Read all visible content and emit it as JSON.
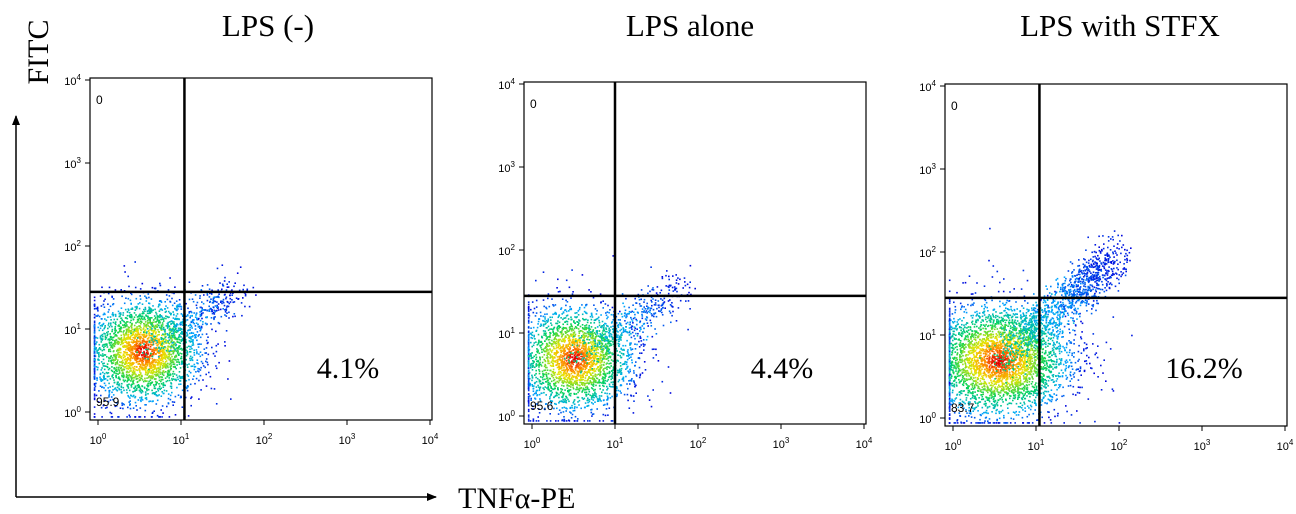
{
  "y_axis_label": "FITC",
  "x_axis_label": "TNFα-PE",
  "chart_data": [
    {
      "type": "scatter",
      "title": "LPS (-)",
      "x_scale": "log",
      "y_scale": "log",
      "xlim": [
        1,
        10000
      ],
      "ylim": [
        1,
        10000
      ],
      "x_ticks": [
        {
          "base": "10",
          "exp": "0"
        },
        {
          "base": "10",
          "exp": "1"
        },
        {
          "base": "10",
          "exp": "2"
        },
        {
          "base": "10",
          "exp": "3"
        },
        {
          "base": "10",
          "exp": "4"
        }
      ],
      "y_ticks": [
        {
          "base": "10",
          "exp": "0"
        },
        {
          "base": "10",
          "exp": "1"
        },
        {
          "base": "10",
          "exp": "2"
        },
        {
          "base": "10",
          "exp": "3"
        },
        {
          "base": "10",
          "exp": "4"
        }
      ],
      "quadrant_gate": {
        "x": 11,
        "y": 28
      },
      "upper_left_percent": "0",
      "lower_left_percent": "95.9",
      "lower_right_percent": "4.1%",
      "population": {
        "center_x": 3.5,
        "center_y": 5.5,
        "spread_x": 0.35,
        "spread_y": 0.33,
        "n_main": 2600,
        "tail_extent_x": 45,
        "tail_extent_y": 30,
        "n_tail": 380
      }
    },
    {
      "type": "scatter",
      "title": "LPS alone",
      "x_scale": "log",
      "y_scale": "log",
      "xlim": [
        1,
        10000
      ],
      "ylim": [
        1,
        10000
      ],
      "x_ticks": [
        {
          "base": "10",
          "exp": "0"
        },
        {
          "base": "10",
          "exp": "1"
        },
        {
          "base": "10",
          "exp": "2"
        },
        {
          "base": "10",
          "exp": "3"
        },
        {
          "base": "10",
          "exp": "4"
        }
      ],
      "y_ticks": [
        {
          "base": "10",
          "exp": "0"
        },
        {
          "base": "10",
          "exp": "1"
        },
        {
          "base": "10",
          "exp": "2"
        },
        {
          "base": "10",
          "exp": "3"
        },
        {
          "base": "10",
          "exp": "4"
        }
      ],
      "quadrant_gate": {
        "x": 10,
        "y": 28
      },
      "upper_left_percent": "0",
      "lower_left_percent": "95.6",
      "lower_right_percent": "4.4%",
      "population": {
        "center_x": 3.2,
        "center_y": 5.0,
        "spread_x": 0.36,
        "spread_y": 0.33,
        "n_main": 2500,
        "tail_extent_x": 60,
        "tail_extent_y": 35,
        "n_tail": 380
      }
    },
    {
      "type": "scatter",
      "title": "LPS with STFX",
      "x_scale": "log",
      "y_scale": "log",
      "xlim": [
        1,
        10000
      ],
      "ylim": [
        1,
        10000
      ],
      "x_ticks": [
        {
          "base": "10",
          "exp": "0"
        },
        {
          "base": "10",
          "exp": "1"
        },
        {
          "base": "10",
          "exp": "2"
        },
        {
          "base": "10",
          "exp": "3"
        },
        {
          "base": "10",
          "exp": "4"
        }
      ],
      "y_ticks": [
        {
          "base": "10",
          "exp": "0"
        },
        {
          "base": "10",
          "exp": "1"
        },
        {
          "base": "10",
          "exp": "2"
        },
        {
          "base": "10",
          "exp": "3"
        },
        {
          "base": "10",
          "exp": "4"
        }
      ],
      "quadrant_gate": {
        "x": 11,
        "y": 28
      },
      "upper_left_percent": "0",
      "lower_left_percent": "83.7",
      "lower_right_percent": "16.2%",
      "population": {
        "center_x": 3.5,
        "center_y": 5.0,
        "spread_x": 0.45,
        "spread_y": 0.36,
        "n_main": 3400,
        "tail_extent_x": 90,
        "tail_extent_y": 90,
        "n_tail": 1100
      }
    }
  ]
}
